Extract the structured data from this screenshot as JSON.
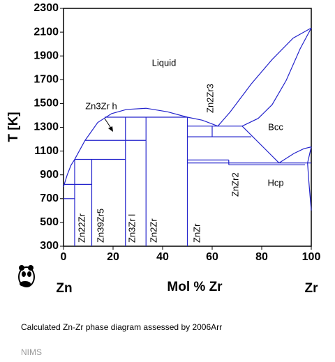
{
  "chart_data": {
    "type": "phase-diagram",
    "title": "Calculated Zn-Zr phase diagram assessed by 2006Arr",
    "source": "NIMS",
    "y_label": "T [K]",
    "x_label": "Mol % Zr",
    "left_element": "Zn",
    "right_element": "Zr",
    "xlim": [
      0,
      100
    ],
    "ylim": [
      300,
      2300
    ],
    "xticks": [
      0,
      20,
      40,
      60,
      80,
      100
    ],
    "yticks": [
      300,
      500,
      700,
      900,
      1100,
      1300,
      1500,
      1700,
      1900,
      2100,
      2300
    ],
    "color": "#2323cc",
    "boundaries": [
      {
        "x": [
          0,
          1.5,
          3,
          4.5,
          8.7,
          13.8,
          19.4,
          25.4,
          33.3,
          42,
          50,
          56,
          62.3,
          67.3,
          75.8,
          84.2,
          92.7,
          100
        ],
        "y": [
          800,
          900,
          980,
          1030,
          1190,
          1340,
          1415,
          1450,
          1460,
          1430,
          1385,
          1360,
          1310,
          1430,
          1665,
          1870,
          2050,
          2135
        ]
      },
      {
        "x": [
          100,
          95.5,
          89.9,
          84.2,
          78.6,
          72.1
        ],
        "y": [
          2135,
          1960,
          1695,
          1490,
          1375,
          1310
        ]
      },
      {
        "x": [
          0,
          4.5
        ],
        "y": [
          700,
          700
        ]
      },
      {
        "x": [
          0,
          11.4
        ],
        "y": [
          820,
          820
        ]
      },
      {
        "x": [
          4.5,
          4.5
        ],
        "y": [
          300,
          1030
        ]
      },
      {
        "x": [
          11.4,
          11.4
        ],
        "y": [
          300,
          1030
        ]
      },
      {
        "x": [
          4.5,
          25
        ],
        "y": [
          1030,
          1030
        ]
      },
      {
        "x": [
          25,
          25
        ],
        "y": [
          300,
          1385
        ]
      },
      {
        "x": [
          8.7,
          33.3
        ],
        "y": [
          1190,
          1190
        ]
      },
      {
        "x": [
          33.3,
          33.3
        ],
        "y": [
          300,
          1385
        ]
      },
      {
        "x": [
          16.6,
          50
        ],
        "y": [
          1385,
          1385
        ]
      },
      {
        "x": [
          50,
          50
        ],
        "y": [
          300,
          1385
        ]
      },
      {
        "x": [
          50,
          72.1
        ],
        "y": [
          1310,
          1310
        ]
      },
      {
        "x": [
          60,
          60
        ],
        "y": [
          1220,
          1310
        ]
      },
      {
        "x": [
          50,
          75.8
        ],
        "y": [
          1220,
          1220
        ]
      },
      {
        "x": [
          72.1,
          87
        ],
        "y": [
          1310,
          1000
        ]
      },
      {
        "x": [
          50,
          66.7
        ],
        "y": [
          1025,
          1025
        ]
      },
      {
        "x": [
          66.7,
          66.7
        ],
        "y": [
          985,
          1025
        ]
      },
      {
        "x": [
          50,
          100
        ],
        "y": [
          1000,
          1000
        ]
      },
      {
        "x": [
          66.7,
          97.5
        ],
        "y": [
          985,
          985
        ]
      },
      {
        "x": [
          87,
          93,
          97,
          100
        ],
        "y": [
          1000,
          1080,
          1120,
          1135
        ]
      },
      {
        "x": [
          100,
          98.5,
          99,
          100
        ],
        "y": [
          1135,
          1000,
          850,
          600
        ]
      }
    ],
    "phase_labels": [
      "Liquid",
      "Bcc",
      "Hcp",
      "Zn3Zr h",
      "Zn22Zr",
      "Zn39Zr5",
      "Zn3Zr l",
      "Zn2Zr",
      "ZnZr",
      "Zn2Zr3",
      "ZnZr2"
    ]
  }
}
